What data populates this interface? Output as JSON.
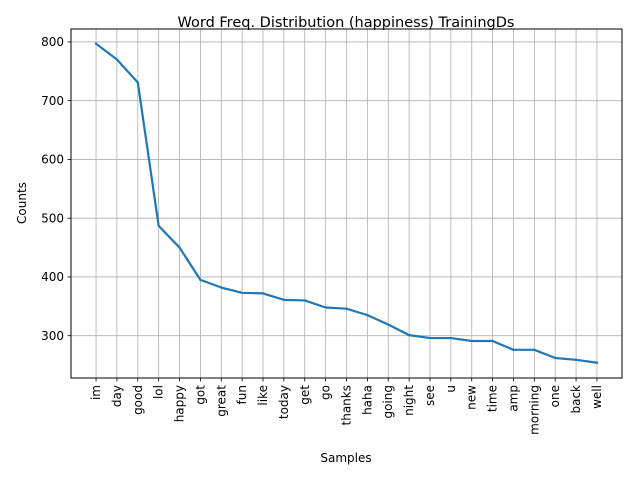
{
  "chart_data": {
    "type": "line",
    "title": "Word Freq. Distribution (happiness) TrainingDs",
    "xlabel": "Samples",
    "ylabel": "Counts",
    "categories": [
      "im",
      "day",
      "good",
      "lol",
      "happy",
      "got",
      "great",
      "fun",
      "like",
      "today",
      "get",
      "go",
      "thanks",
      "haha",
      "going",
      "night",
      "see",
      "u",
      "new",
      "time",
      "amp",
      "morning",
      "one",
      "back",
      "well"
    ],
    "series": [
      {
        "values": [
          797,
          770,
          731,
          487,
          450,
          395,
          382,
          373,
          372,
          361,
          360,
          348,
          346,
          335,
          319,
          301,
          296,
          296,
          291,
          291,
          276,
          276,
          262,
          259,
          254
        ]
      }
    ],
    "yticks": [
      300,
      400,
      500,
      600,
      700,
      800
    ],
    "ylim": [
      228,
      822
    ],
    "grid": true,
    "colors": {
      "line": "#1f77b4",
      "grid": "#b0b0b0",
      "axis": "#000000"
    }
  }
}
